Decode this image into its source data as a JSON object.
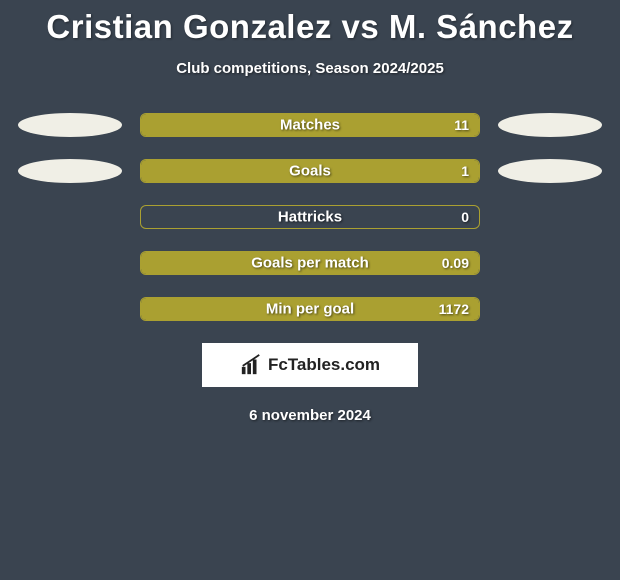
{
  "title": "Cristian Gonzalez vs M. Sánchez",
  "subtitle": "Club competitions, Season 2024/2025",
  "date": "6 november 2024",
  "logo_text": "FcTables.com",
  "chart": {
    "type": "comparison-bars",
    "track_width": 340,
    "track_height": 24,
    "border_radius": 6,
    "fill_color": "#aaa031",
    "border_color": "#aaa031",
    "background_color": "#3a4450",
    "ellipse_color": "#f0efe6",
    "label_fontsize": 15,
    "value_fontsize": 14,
    "rows": [
      {
        "label": "Matches",
        "value": "11",
        "fill_pct": 100,
        "show_ellipses": true
      },
      {
        "label": "Goals",
        "value": "1",
        "fill_pct": 100,
        "show_ellipses": true
      },
      {
        "label": "Hattricks",
        "value": "0",
        "fill_pct": 0,
        "show_ellipses": false
      },
      {
        "label": "Goals per match",
        "value": "0.09",
        "fill_pct": 100,
        "show_ellipses": false
      },
      {
        "label": "Min per goal",
        "value": "1172",
        "fill_pct": 100,
        "show_ellipses": false
      }
    ]
  }
}
